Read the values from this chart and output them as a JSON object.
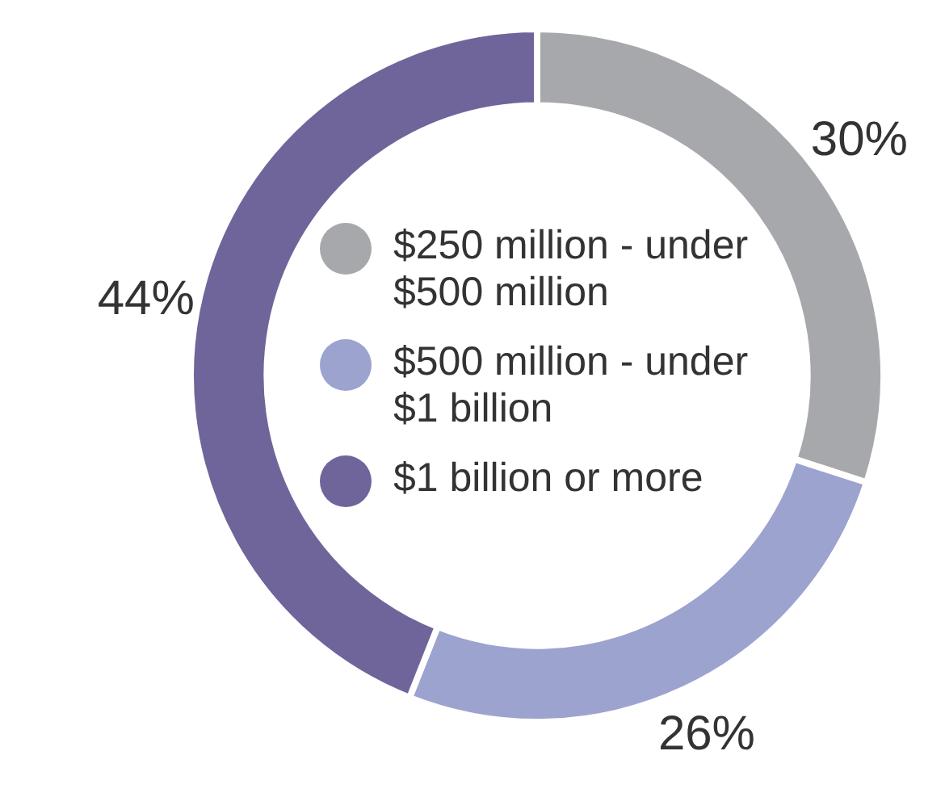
{
  "chart_data": {
    "type": "donut",
    "categories": [
      "$250 million - under $500 million",
      "$500 million - under $1 billion",
      "$1 billion or more"
    ],
    "values": [
      30,
      26,
      44
    ],
    "colors": [
      "#a7a8ab",
      "#9ca3cf",
      "#6f659b"
    ],
    "value_labels": [
      "30%",
      "26%",
      "44%"
    ],
    "legend": "center"
  }
}
